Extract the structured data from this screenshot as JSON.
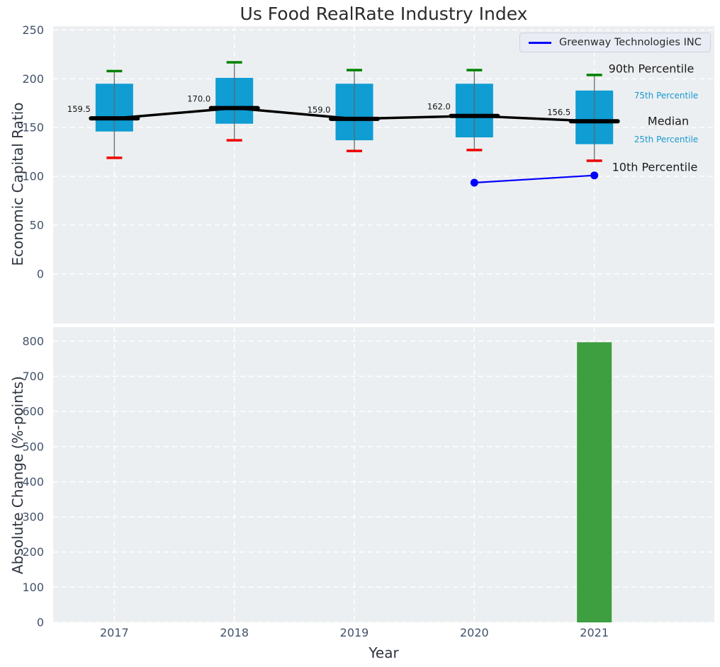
{
  "colors": {
    "figure_bg": "#ffffff",
    "axes_bg": "#eceff1",
    "grid": "#ffffff",
    "box_fill": "#0f9dd3",
    "whisker": "#666666",
    "cap_high": "#008000",
    "cap_low": "#ee0000",
    "median": "#000000",
    "series_line": "#0000ff",
    "bar": "#3d9f40",
    "tick_label": "#42526b",
    "annotation_blue": "#189ad2"
  },
  "chart_data": [
    {
      "type": "box",
      "title": "Us Food RealRate Industry Index",
      "ylabel": "Economic Capital Ratio",
      "ylim": [
        -51,
        254
      ],
      "yticks": [
        0,
        50,
        100,
        150,
        200,
        250
      ],
      "xlim": [
        2016.49,
        2022.0
      ],
      "years": [
        2017,
        2018,
        2019,
        2020,
        2021
      ],
      "grid": "white dashed, horizontal and vertical",
      "legend": {
        "label": "Greenway Technologies INC",
        "position": "upper right"
      },
      "boxes": [
        {
          "year": 2017,
          "p10": 119,
          "p25": 146,
          "median": 159.5,
          "p75": 195,
          "p90": 208
        },
        {
          "year": 2018,
          "p10": 137,
          "p25": 154,
          "median": 170.0,
          "p75": 201,
          "p90": 217
        },
        {
          "year": 2019,
          "p10": 126,
          "p25": 137,
          "median": 159.0,
          "p75": 195,
          "p90": 209
        },
        {
          "year": 2020,
          "p10": 127,
          "p25": 140,
          "median": 162.0,
          "p75": 195,
          "p90": 209
        },
        {
          "year": 2021,
          "p10": 116,
          "p25": 133,
          "median": 156.5,
          "p75": 188,
          "p90": 204
        }
      ],
      "median_labels": [
        "159.5",
        "170.0",
        "159.0",
        "162.0",
        "156.5"
      ],
      "series": [
        {
          "name": "Greenway Technologies INC",
          "x": [
            2020,
            2021
          ],
          "y": [
            93.5,
            101
          ],
          "color": "#0000ff",
          "marker": "circle"
        }
      ],
      "annotations": [
        {
          "key": "p90",
          "text": "90th Percentile",
          "style": "big"
        },
        {
          "key": "p75",
          "text": "75th Percentile",
          "style": "small"
        },
        {
          "key": "median",
          "text": "Median",
          "style": "big"
        },
        {
          "key": "p25",
          "text": "25th Percentile",
          "style": "small"
        },
        {
          "key": "p10",
          "text": "10th Percentile",
          "style": "big"
        }
      ]
    },
    {
      "type": "bar",
      "ylabel": "Absolute Change (%-points)",
      "xlabel": "Year",
      "categories": [
        "2017",
        "2018",
        "2019",
        "2020",
        "2021"
      ],
      "values": [
        null,
        null,
        null,
        null,
        797
      ],
      "ylim": [
        0,
        840
      ],
      "yticks": [
        0,
        100,
        200,
        300,
        400,
        500,
        600,
        700,
        800
      ],
      "grid": "white dashed, horizontal and vertical"
    }
  ]
}
